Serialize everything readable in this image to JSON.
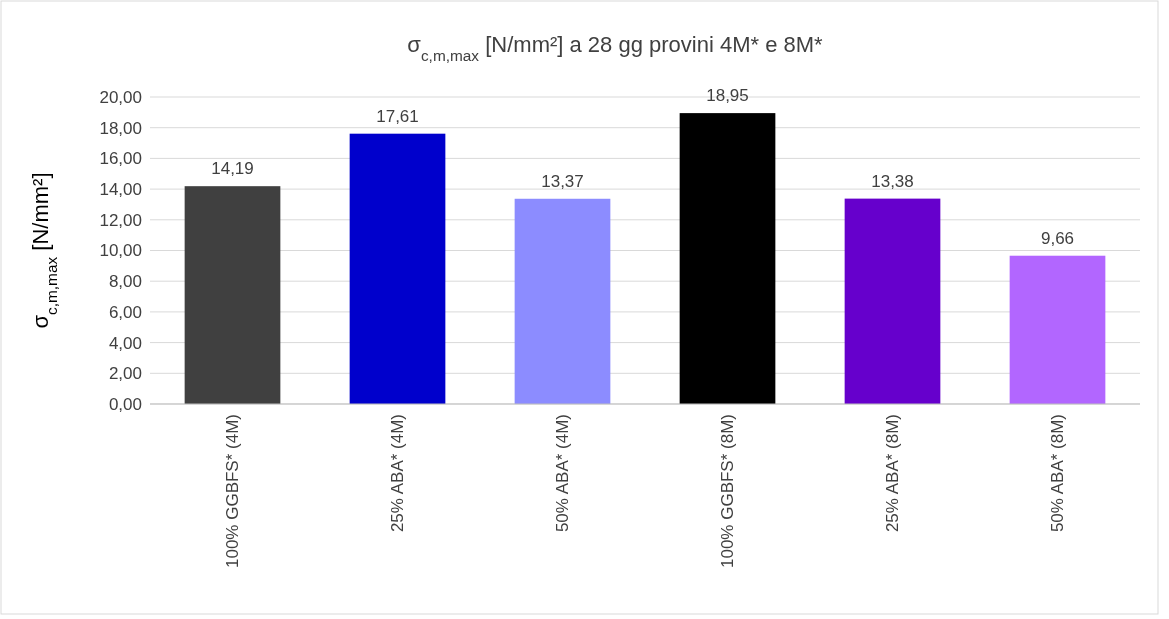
{
  "chart_data": {
    "type": "bar",
    "title": "σ$_{c,m,max}$ [N/mm²] a 28 gg provini 4M* e 8M*",
    "ylabel": "σ$_{c,m,max}$ [N/mm²]",
    "categories": [
      "100% GGBFS* (4M)",
      "25% ABA* (4M)",
      "50% ABA* (4M)",
      "100% GGBFS* (8M)",
      "25% ABA* (8M)",
      "50% ABA* (8M)"
    ],
    "values": [
      14.19,
      17.61,
      13.37,
      18.95,
      13.38,
      9.66
    ],
    "colors": [
      "#404040",
      "#0000cc",
      "#8c8cff",
      "#000000",
      "#6600cc",
      "#b266ff"
    ],
    "value_labels": [
      "14,19",
      "17,61",
      "13,37",
      "18,95",
      "13,38",
      "9,66"
    ],
    "ylim": [
      0,
      20
    ],
    "yticks": [
      {
        "value": 0,
        "label": "0,00"
      },
      {
        "value": 2,
        "label": "2,00"
      },
      {
        "value": 4,
        "label": "4,00"
      },
      {
        "value": 6,
        "label": "6,00"
      },
      {
        "value": 8,
        "label": "8,00"
      },
      {
        "value": 10,
        "label": "10,00"
      },
      {
        "value": 12,
        "label": "12,00"
      },
      {
        "value": 14,
        "label": "14,00"
      },
      {
        "value": 16,
        "label": "16,00"
      },
      {
        "value": 18,
        "label": "18,00"
      },
      {
        "value": 20,
        "label": "20,00"
      }
    ],
    "grid": "y"
  }
}
